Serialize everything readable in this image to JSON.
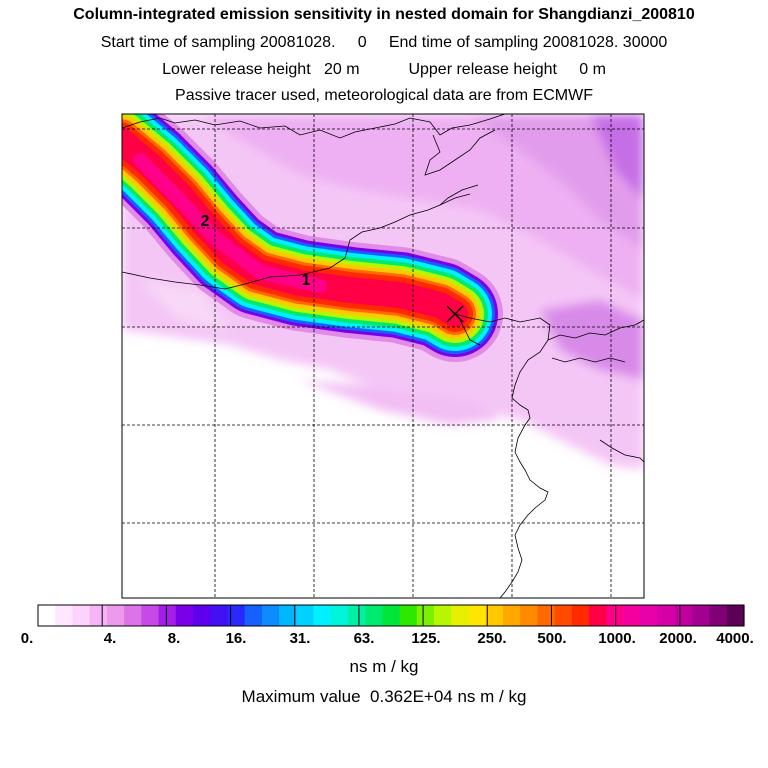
{
  "title": "Column-integrated emission sensitivity in nested domain for Shangdianzi_200810",
  "sampling": "Start time of sampling 20081028.     0     End time of sampling 20081028. 30000",
  "release": "Lower release height   20 m           Upper release height     0 m",
  "tracer": "Passive tracer used, meteorological data are from ECMWF",
  "map": {
    "markers": [
      "1",
      "2"
    ],
    "release_site": "Shangdianzi"
  },
  "colorbar": {
    "ticks": [
      "0.",
      "4.",
      "8.",
      "16.",
      "31.",
      "63.",
      "125.",
      "250.",
      "500.",
      "1000.",
      "2000.",
      "4000."
    ],
    "colors": [
      "#ffffff",
      "#ffe8ff",
      "#fdd2fd",
      "#f7b5f7",
      "#ed9aed",
      "#dc74e8",
      "#c54ae8",
      "#a41eea",
      "#7a00ea",
      "#5e00ee",
      "#4210f2",
      "#2828ff",
      "#1660ff",
      "#0d8cff",
      "#00b6ff",
      "#00d2ff",
      "#00f0ff",
      "#00f5d8",
      "#00f0a8",
      "#00ea70",
      "#00e53c",
      "#2fe800",
      "#7cf000",
      "#b7f500",
      "#e6f000",
      "#ffe500",
      "#ffc800",
      "#ffa800",
      "#ff8a00",
      "#ff6a00",
      "#ff4b00",
      "#ff2a00",
      "#ff0046",
      "#ff0088",
      "#f4009e",
      "#e800a8",
      "#d600a6",
      "#c0009e",
      "#a20090",
      "#800075",
      "#5a0055"
    ],
    "units": "ns m / kg",
    "max_label": "Maximum value  0.362E+04 ns m / kg"
  }
}
